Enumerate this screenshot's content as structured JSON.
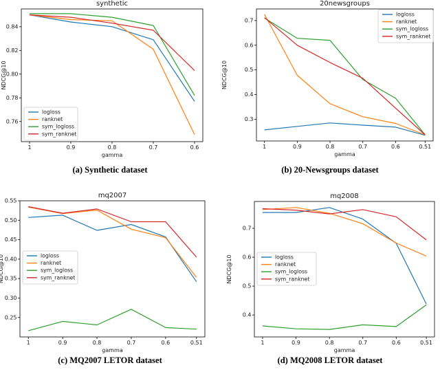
{
  "page": {
    "background": "#ffffff",
    "text_color": "#1a1a1a",
    "spine_color": "#000000"
  },
  "series_colors": {
    "logloss": "#1f77b4",
    "ranknet": "#ff7f0e",
    "sym_logloss": "#2ca02c",
    "sym_ranknet": "#d62728"
  },
  "chart_data": [
    {
      "id": "a",
      "type": "line",
      "title": "synthetic",
      "caption": "(a) Synthetic dataset",
      "xlabel": "gamma",
      "ylabel": "NDCG@10",
      "x": [
        1,
        0.9,
        0.8,
        0.7,
        0.6
      ],
      "xtick_labels": [
        "1",
        "0.9",
        "0.8",
        "0.7",
        "0.6"
      ],
      "xlim": [
        1.02,
        0.58
      ],
      "ylim": [
        0.743,
        0.855
      ],
      "yticks": [
        0.76,
        0.78,
        0.8,
        0.82,
        0.84
      ],
      "ytick_labels": [
        "0.76",
        "0.78",
        "0.80",
        "0.82",
        "0.84"
      ],
      "grid": false,
      "legend_position": "lower-left",
      "series": [
        {
          "name": "logloss",
          "color": "#1f77b4",
          "values": [
            0.85,
            0.844,
            0.84,
            0.829,
            0.777
          ]
        },
        {
          "name": "ranknet",
          "color": "#ff7f0e",
          "values": [
            0.85,
            0.846,
            0.845,
            0.821,
            0.749
          ]
        },
        {
          "name": "sym_logloss",
          "color": "#2ca02c",
          "values": [
            0.851,
            0.851,
            0.848,
            0.841,
            0.782
          ]
        },
        {
          "name": "sym_ranknet",
          "color": "#d62728",
          "values": [
            0.85,
            0.848,
            0.843,
            0.837,
            0.803
          ]
        }
      ]
    },
    {
      "id": "b",
      "type": "line",
      "title": "20newsgroups",
      "caption": "(b) 20-Newsgroups dataset",
      "xlabel": "gamma",
      "ylabel": "NDCG@10",
      "x": [
        1,
        0.9,
        0.8,
        0.7,
        0.6,
        0.51
      ],
      "xtick_labels": [
        "1",
        "0.9",
        "0.8",
        "0.7",
        "0.6",
        "0.51"
      ],
      "xlim": [
        1.0245,
        0.4855
      ],
      "ylim": [
        0.212,
        0.747
      ],
      "yticks": [
        0.3,
        0.4,
        0.5,
        0.6,
        0.7
      ],
      "ytick_labels": [
        "0.3",
        "0.4",
        "0.5",
        "0.6",
        "0.7"
      ],
      "grid": false,
      "legend_position": "upper-right",
      "series": [
        {
          "name": "logloss",
          "color": "#1f77b4",
          "values": [
            0.257,
            0.271,
            0.285,
            0.276,
            0.268,
            0.235
          ]
        },
        {
          "name": "ranknet",
          "color": "#ff7f0e",
          "values": [
            0.725,
            0.478,
            0.363,
            0.31,
            0.283,
            0.237
          ]
        },
        {
          "name": "sym_logloss",
          "color": "#2ca02c",
          "values": [
            0.71,
            0.628,
            0.62,
            0.461,
            0.385,
            0.237
          ]
        },
        {
          "name": "sym_ranknet",
          "color": "#d62728",
          "values": [
            0.712,
            0.6,
            0.53,
            0.466,
            0.345,
            0.237
          ]
        }
      ]
    },
    {
      "id": "c",
      "type": "line",
      "title": "mq2007",
      "caption": "(c) MQ2007 LETOR dataset",
      "xlabel": "gamma",
      "ylabel": "NDCG@10",
      "x": [
        1,
        0.9,
        0.8,
        0.7,
        0.6,
        0.51
      ],
      "xtick_labels": [
        "1",
        "0.9",
        "0.8",
        "0.7",
        "0.6",
        "0.51"
      ],
      "xlim": [
        1.0245,
        0.4855
      ],
      "ylim": [
        0.2,
        0.55
      ],
      "yticks": [
        0.25,
        0.3,
        0.35,
        0.4,
        0.45,
        0.5,
        0.55
      ],
      "ytick_labels": [
        "0.25",
        "0.30",
        "0.35",
        "0.40",
        "0.45",
        "0.50",
        "0.55"
      ],
      "grid": false,
      "legend_position": "center-left",
      "series": [
        {
          "name": "logloss",
          "color": "#1f77b4",
          "values": [
            0.507,
            0.513,
            0.474,
            0.489,
            0.457,
            0.342
          ]
        },
        {
          "name": "ranknet",
          "color": "#ff7f0e",
          "values": [
            0.534,
            0.517,
            0.526,
            0.477,
            0.455,
            0.353
          ]
        },
        {
          "name": "sym_logloss",
          "color": "#2ca02c",
          "values": [
            0.216,
            0.24,
            0.231,
            0.271,
            0.224,
            0.22
          ]
        },
        {
          "name": "sym_ranknet",
          "color": "#d62728",
          "values": [
            0.535,
            0.518,
            0.529,
            0.496,
            0.496,
            0.405
          ]
        }
      ]
    },
    {
      "id": "d",
      "type": "line",
      "title": "mq2008",
      "caption": "(d) MQ2008 LETOR dataset",
      "xlabel": "gamma",
      "ylabel": "NDCG@10",
      "x": [
        1,
        0.9,
        0.8,
        0.7,
        0.6,
        0.51
      ],
      "xtick_labels": [
        "1",
        "0.9",
        "0.8",
        "0.7",
        "0.6",
        "0.51"
      ],
      "xlim": [
        1.0245,
        0.4855
      ],
      "ylim": [
        0.324,
        0.793
      ],
      "yticks": [
        0.4,
        0.5,
        0.6,
        0.7
      ],
      "ytick_labels": [
        "0.4",
        "0.5",
        "0.6",
        "0.7"
      ],
      "grid": false,
      "legend_position": "center-left",
      "series": [
        {
          "name": "logloss",
          "color": "#1f77b4",
          "values": [
            0.755,
            0.755,
            0.772,
            0.732,
            0.648,
            0.438
          ]
        },
        {
          "name": "ranknet",
          "color": "#ff7f0e",
          "values": [
            0.765,
            0.772,
            0.752,
            0.716,
            0.649,
            0.604
          ]
        },
        {
          "name": "sym_logloss",
          "color": "#2ca02c",
          "values": [
            0.362,
            0.352,
            0.35,
            0.366,
            0.36,
            0.435
          ]
        },
        {
          "name": "sym_ranknet",
          "color": "#d62728",
          "values": [
            0.768,
            0.763,
            0.75,
            0.765,
            0.74,
            0.66
          ]
        }
      ]
    }
  ]
}
